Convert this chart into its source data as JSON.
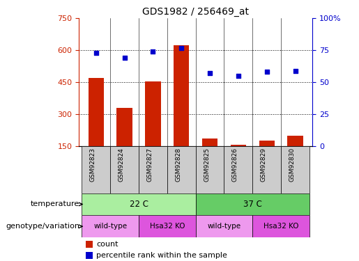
{
  "title": "GDS1982 / 256469_at",
  "samples": [
    "GSM92823",
    "GSM92824",
    "GSM92827",
    "GSM92828",
    "GSM92825",
    "GSM92826",
    "GSM92829",
    "GSM92830"
  ],
  "counts": [
    470,
    330,
    455,
    625,
    185,
    155,
    175,
    200
  ],
  "percentile_ranks": [
    73,
    69,
    74,
    77,
    57,
    55,
    58,
    59
  ],
  "ylim_left": [
    150,
    750
  ],
  "ylim_right": [
    0,
    100
  ],
  "yticks_left": [
    150,
    300,
    450,
    600,
    750
  ],
  "yticks_right": [
    0,
    25,
    50,
    75,
    100
  ],
  "ytick_labels_right": [
    "0",
    "25",
    "50",
    "75",
    "100%"
  ],
  "bar_color": "#cc2200",
  "dot_color": "#0000cc",
  "temperature_colors": [
    "#aaeea0",
    "#66cc66"
  ],
  "genotype_colors": [
    "#ee99ee",
    "#dd55dd"
  ],
  "temperature_labels": [
    "22 C",
    "37 C"
  ],
  "genotype_labels": [
    "wild-type",
    "Hsa32 KO",
    "wild-type",
    "Hsa32 KO"
  ],
  "legend_count_label": "count",
  "legend_pct_label": "percentile rank within the sample",
  "row_label_temperature": "temperature",
  "row_label_genotype": "genotype/variation"
}
